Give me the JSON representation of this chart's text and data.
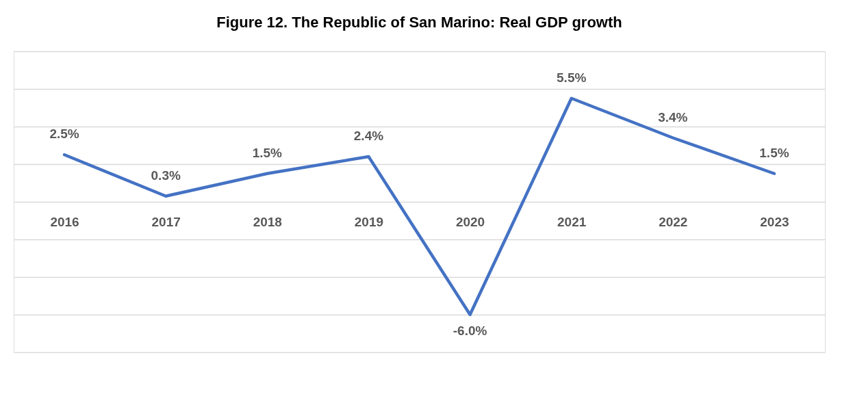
{
  "chart_data": {
    "type": "line",
    "title": "Figure 12. The Republic of San Marino: Real GDP growth",
    "categories": [
      "2016",
      "2017",
      "2018",
      "2019",
      "2020",
      "2021",
      "2022",
      "2023"
    ],
    "series": [
      {
        "color": "#4472c4",
        "values": [
          2.5,
          0.3,
          1.5,
          2.4,
          -6.0,
          5.5,
          3.4,
          1.5
        ],
        "value_labels": [
          "2.5%",
          "0.3%",
          "1.5%",
          "2.4%",
          "-6.0%",
          "5.5%",
          "3.4%",
          "1.5%"
        ]
      }
    ],
    "ylim": [
      -8,
      8
    ],
    "yticks": [
      {
        "value": -8,
        "label": null
      },
      {
        "value": -6,
        "label": null
      },
      {
        "value": -4,
        "label": null
      },
      {
        "value": -2,
        "label": null
      },
      {
        "value": 0,
        "label": null
      },
      {
        "value": 2,
        "label": null
      },
      {
        "value": 4,
        "label": null
      },
      {
        "value": 6,
        "label": null
      },
      {
        "value": 8,
        "label": null
      }
    ],
    "tick_labels": "x",
    "grid": "y",
    "legend": false,
    "marker": "none",
    "line_style": "solid"
  }
}
